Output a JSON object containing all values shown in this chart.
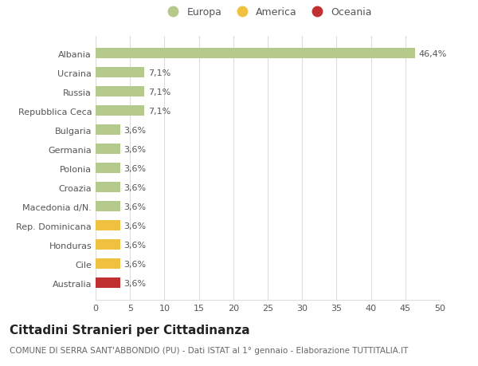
{
  "categories": [
    "Albania",
    "Ucraina",
    "Russia",
    "Repubblica Ceca",
    "Bulgaria",
    "Germania",
    "Polonia",
    "Croazia",
    "Macedonia d/N.",
    "Rep. Dominicana",
    "Honduras",
    "Cile",
    "Australia"
  ],
  "values": [
    46.4,
    7.1,
    7.1,
    7.1,
    3.6,
    3.6,
    3.6,
    3.6,
    3.6,
    3.6,
    3.6,
    3.6,
    3.6
  ],
  "labels": [
    "46,4%",
    "7,1%",
    "7,1%",
    "7,1%",
    "3,6%",
    "3,6%",
    "3,6%",
    "3,6%",
    "3,6%",
    "3,6%",
    "3,6%",
    "3,6%",
    "3,6%"
  ],
  "colors": [
    "#b5c98a",
    "#b5c98a",
    "#b5c98a",
    "#b5c98a",
    "#b5c98a",
    "#b5c98a",
    "#b5c98a",
    "#b5c98a",
    "#b5c98a",
    "#f0c040",
    "#f0c040",
    "#f0c040",
    "#c03030"
  ],
  "legend": [
    {
      "label": "Europa",
      "color": "#b5c98a"
    },
    {
      "label": "America",
      "color": "#f0c040"
    },
    {
      "label": "Oceania",
      "color": "#c03030"
    }
  ],
  "xlim": [
    0,
    50
  ],
  "xticks": [
    0,
    5,
    10,
    15,
    20,
    25,
    30,
    35,
    40,
    45,
    50
  ],
  "title": "Cittadini Stranieri per Cittadinanza",
  "subtitle": "COMUNE DI SERRA SANT'ABBONDIO (PU) - Dati ISTAT al 1° gennaio - Elaborazione TUTTITALIA.IT",
  "background_color": "#ffffff",
  "grid_color": "#dddddd",
  "bar_height": 0.55,
  "title_fontsize": 11,
  "subtitle_fontsize": 7.5,
  "label_fontsize": 8,
  "tick_fontsize": 8,
  "legend_fontsize": 9
}
